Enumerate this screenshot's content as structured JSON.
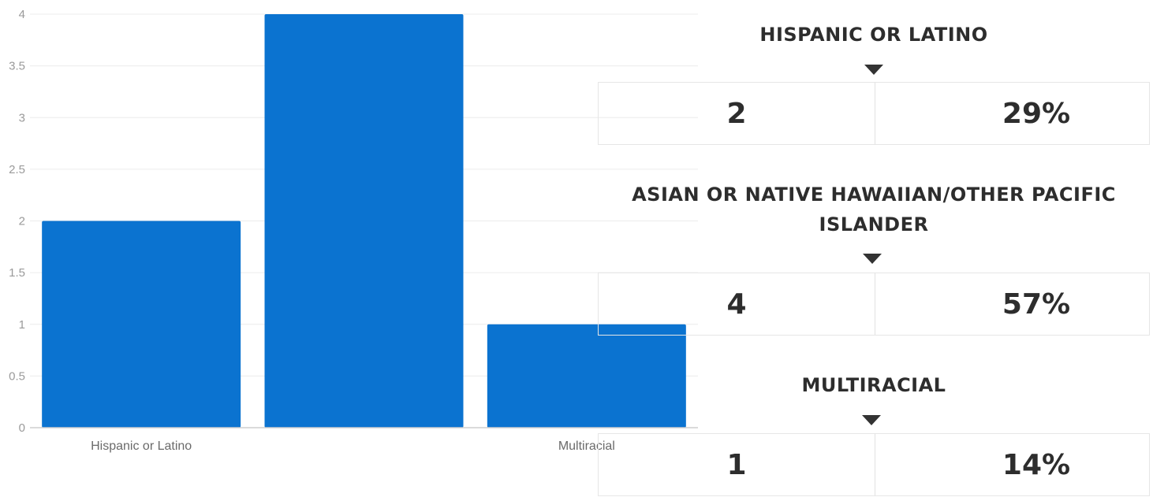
{
  "chart_data": {
    "type": "bar",
    "categories": [
      "Hispanic or Latino",
      "Asian or Native Hawaiian/Other Pacific Islander",
      "Multiracial"
    ],
    "visible_category_labels": [
      "Hispanic or Latino",
      "",
      "Multiracial"
    ],
    "values": [
      2,
      4,
      1
    ],
    "ylim": [
      0,
      4
    ],
    "yticks": [
      0,
      0.5,
      1,
      1.5,
      2,
      2.5,
      3,
      3.5,
      4
    ],
    "ytick_labels": [
      "0",
      "0.5",
      "1",
      "1.5",
      "2",
      "2.5",
      "3",
      "3.5",
      "4"
    ],
    "grid": true,
    "bar_color": "#0B73D0",
    "title": "",
    "xlabel": "",
    "ylabel": ""
  },
  "summary": [
    {
      "title": "HISPANIC OR LATINO",
      "count": "2",
      "percent": "29%"
    },
    {
      "title": "ASIAN OR NATIVE HAWAIIAN/OTHER PACIFIC ISLANDER",
      "count": "4",
      "percent": "57%"
    },
    {
      "title": "MULTIRACIAL",
      "count": "1",
      "percent": "14%"
    }
  ]
}
